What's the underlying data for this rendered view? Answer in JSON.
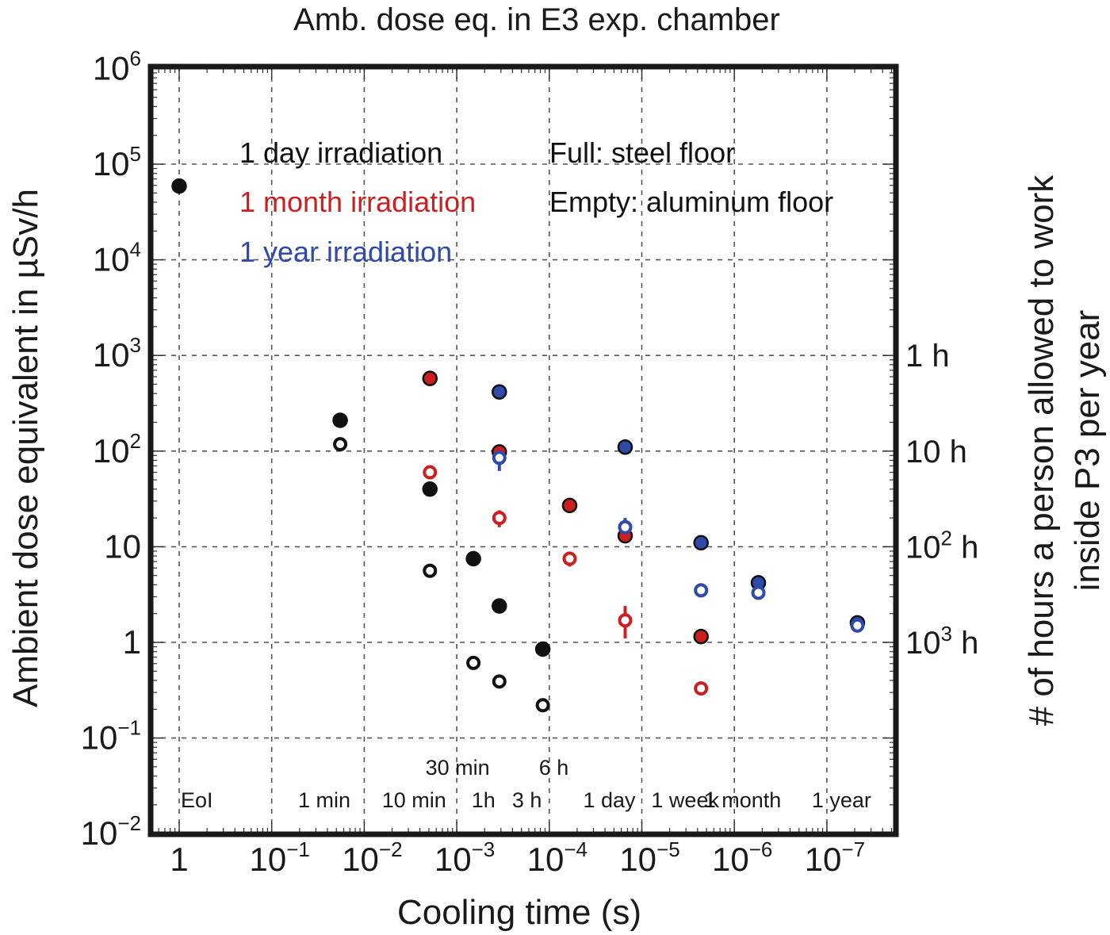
{
  "chart_data": {
    "type": "scatter",
    "title": "Amb. dose eq. in E3 exp. chamber",
    "xlabel": "Cooling time (s)",
    "ylabel": "Ambient dose equivalent in µSv/h",
    "ylabel_right": [
      "# of hours a person allowed to work",
      "inside P3 per year"
    ],
    "y_scale": "log",
    "ylim": [
      0.01,
      1000000
    ],
    "x_scale": "log-decade-index",
    "xlim_decades": [
      -0.3,
      7.8
    ],
    "grid": true,
    "x_ticks": [
      {
        "decade": 0,
        "base": "1",
        "exp": ""
      },
      {
        "decade": 1,
        "base": "10",
        "exp": "−1"
      },
      {
        "decade": 2,
        "base": "10",
        "exp": "−2"
      },
      {
        "decade": 3,
        "base": "10",
        "exp": "−3"
      },
      {
        "decade": 4,
        "base": "10",
        "exp": "−4"
      },
      {
        "decade": 5,
        "base": "10",
        "exp": "−5"
      },
      {
        "decade": 6,
        "base": "10",
        "exp": "−6"
      },
      {
        "decade": 7,
        "base": "10",
        "exp": "−7"
      }
    ],
    "y_ticks": [
      {
        "value": 1000000,
        "base": "10",
        "exp": "6"
      },
      {
        "value": 100000,
        "base": "10",
        "exp": "5"
      },
      {
        "value": 10000,
        "base": "10",
        "exp": "4"
      },
      {
        "value": 1000,
        "base": "10",
        "exp": "3"
      },
      {
        "value": 100,
        "base": "10",
        "exp": "2"
      },
      {
        "value": 10,
        "base": "10",
        "exp": ""
      },
      {
        "value": 1,
        "base": "1",
        "exp": ""
      },
      {
        "value": 0.1,
        "base": "10",
        "exp": "−1"
      },
      {
        "value": 0.01,
        "base": "10",
        "exp": "−2"
      }
    ],
    "right_ticks": [
      {
        "value": 1000,
        "base": "1 h",
        "exp": "",
        "suffix": ""
      },
      {
        "value": 100,
        "base": "10 h",
        "exp": "",
        "suffix": ""
      },
      {
        "value": 10,
        "base": "10",
        "exp": "2",
        "suffix": " h"
      },
      {
        "value": 1,
        "base": "10",
        "exp": "3",
        "suffix": " h"
      }
    ],
    "time_labels": [
      {
        "label": "EoI",
        "decade": 0,
        "row": 1,
        "anchor": "start"
      },
      {
        "label": "1 min",
        "decade": 1.74,
        "row": 1,
        "anchor": "middle"
      },
      {
        "label": "10 min",
        "decade": 2.71,
        "row": 1,
        "anchor": "middle"
      },
      {
        "label": "30 min",
        "decade": 3.18,
        "row": 0,
        "anchor": "middle"
      },
      {
        "label": "1h",
        "decade": 3.46,
        "row": 1,
        "anchor": "middle"
      },
      {
        "label": "3 h",
        "decade": 3.93,
        "row": 1,
        "anchor": "middle"
      },
      {
        "label": "6 h",
        "decade": 4.22,
        "row": 0,
        "anchor": "middle"
      },
      {
        "label": "1 day",
        "decade": 4.82,
        "row": 1,
        "anchor": "middle"
      },
      {
        "label": "1 week",
        "decade": 5.64,
        "row": 1,
        "anchor": "middle"
      },
      {
        "label": "1 month",
        "decade": 6.26,
        "row": 1,
        "anchor": "middle"
      },
      {
        "label": "1 year",
        "decade": 7.33,
        "row": 1,
        "anchor": "middle"
      }
    ],
    "legend": {
      "placement": "top-left",
      "entries": [
        {
          "label": "1 day irradiation",
          "color": "#111111"
        },
        {
          "label": "1 month irradiation",
          "color": "#cc1f1f"
        },
        {
          "label": "1 year irradiation",
          "color": "#2f4aa8"
        }
      ],
      "notes": [
        "Full: steel floor",
        "Empty: aluminum floor"
      ]
    },
    "series": [
      {
        "name": "1 day irradiation – steel floor (full)",
        "color": "#111111",
        "filled": true,
        "points": [
          {
            "time": "EoI",
            "decade": 0,
            "y": 59000
          },
          {
            "time": "1 min",
            "decade": 1.74,
            "y": 210,
            "err": [
              180,
              230
            ]
          },
          {
            "time": "10 min",
            "decade": 2.71,
            "y": 40
          },
          {
            "time": "30 min",
            "decade": 3.18,
            "y": 7.5
          },
          {
            "time": "1h",
            "decade": 3.46,
            "y": 2.4,
            "err": [
              2.1,
              2.6
            ]
          },
          {
            "time": "3 h",
            "decade": 3.93,
            "y": 0.85
          }
        ]
      },
      {
        "name": "1 day irradiation – aluminum floor (empty)",
        "color": "#111111",
        "filled": false,
        "points": [
          {
            "time": "1 min",
            "decade": 1.74,
            "y": 118
          },
          {
            "time": "10 min",
            "decade": 2.71,
            "y": 5.6
          },
          {
            "time": "30 min",
            "decade": 3.18,
            "y": 0.61
          },
          {
            "time": "1h",
            "decade": 3.46,
            "y": 0.39
          },
          {
            "time": "3 h",
            "decade": 3.93,
            "y": 0.22,
            "err": [
              0.19,
              0.24
            ]
          }
        ]
      },
      {
        "name": "1 month irradiation – steel floor (full)",
        "color": "#cc1f1f",
        "filled": true,
        "points": [
          {
            "time": "10 min",
            "decade": 2.71,
            "y": 575
          },
          {
            "time": "1h",
            "decade": 3.46,
            "y": 98
          },
          {
            "time": "6 h",
            "decade": 4.22,
            "y": 27
          },
          {
            "time": "1 day",
            "decade": 4.82,
            "y": 13
          },
          {
            "time": "1 week",
            "decade": 5.64,
            "y": 1.15
          }
        ]
      },
      {
        "name": "1 month irradiation – aluminum floor (empty)",
        "color": "#cc1f1f",
        "filled": false,
        "points": [
          {
            "time": "10 min",
            "decade": 2.71,
            "y": 60
          },
          {
            "time": "1h",
            "decade": 3.46,
            "y": 20,
            "err": [
              16,
              24
            ]
          },
          {
            "time": "6 h",
            "decade": 4.22,
            "y": 7.5,
            "err": [
              6.2,
              8.8
            ]
          },
          {
            "time": "1 day",
            "decade": 4.82,
            "y": 1.7,
            "err": [
              1.1,
              2.4
            ]
          },
          {
            "time": "1 week",
            "decade": 5.64,
            "y": 0.33
          }
        ]
      },
      {
        "name": "1 year irradiation – steel floor (full)",
        "color": "#2f4aa8",
        "filled": true,
        "points": [
          {
            "time": "1h",
            "decade": 3.46,
            "y": 415
          },
          {
            "time": "1 day",
            "decade": 4.82,
            "y": 110,
            "err": [
              100,
              120
            ]
          },
          {
            "time": "1 week",
            "decade": 5.64,
            "y": 11
          },
          {
            "time": "1 month",
            "decade": 6.26,
            "y": 4.2
          },
          {
            "time": "1 year",
            "decade": 7.33,
            "y": 1.6
          }
        ]
      },
      {
        "name": "1 year irradiation – aluminum floor (empty)",
        "color": "#2f4aa8",
        "filled": false,
        "points": [
          {
            "time": "1h",
            "decade": 3.46,
            "y": 85,
            "err": [
              62,
              95
            ]
          },
          {
            "time": "1 day",
            "decade": 4.82,
            "y": 16,
            "err": [
              15,
              20
            ]
          },
          {
            "time": "1 week",
            "decade": 5.64,
            "y": 3.5
          },
          {
            "time": "1 month",
            "decade": 6.26,
            "y": 3.3
          },
          {
            "time": "1 year",
            "decade": 7.33,
            "y": 1.5
          }
        ]
      }
    ]
  }
}
